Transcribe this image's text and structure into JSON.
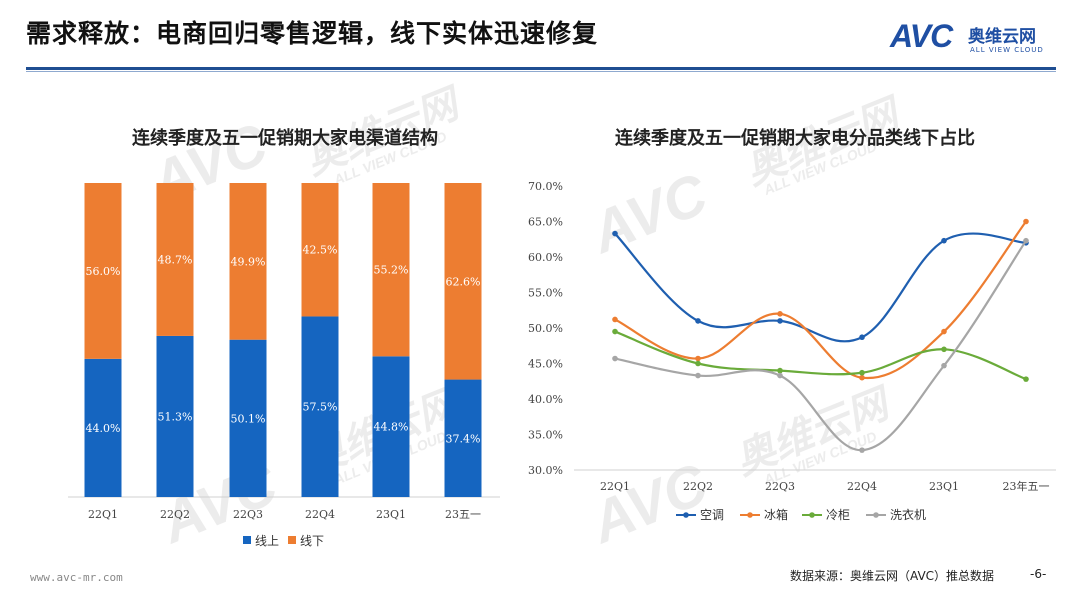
{
  "header": {
    "title": "需求释放：电商回归零售逻辑，线下实体迅速修复",
    "logo_text": "AVC",
    "logo_cn": "奥维云网",
    "logo_en": "ALL VIEW CLOUD"
  },
  "watermark": {
    "brand": "AVC",
    "cn": "奥维云网",
    "en": "ALL VIEW CLOUD"
  },
  "footer": {
    "url": "www.avc-mr.com",
    "source": "数据来源：奥维云网（AVC）推总数据",
    "page": "-6-"
  },
  "colors": {
    "online": "#1565c0",
    "offline": "#ed7d31",
    "aircon": "#1f5fb0",
    "fridge": "#ed7d31",
    "freezer": "#6aab3a",
    "washer": "#a6a6a6"
  },
  "chart_data": [
    {
      "type": "bar",
      "stacked": true,
      "title": "连续季度及五一促销期大家电渠道结构",
      "categories": [
        "22Q1",
        "22Q2",
        "22Q3",
        "22Q4",
        "23Q1",
        "23五一"
      ],
      "series": [
        {
          "name": "线上",
          "values": [
            44.0,
            51.3,
            50.1,
            57.5,
            44.8,
            37.4
          ],
          "labels": [
            "44.0%",
            "51.3%",
            "50.1%",
            "57.5%",
            "44.8%",
            "37.4%"
          ]
        },
        {
          "name": "线下",
          "values": [
            56.0,
            48.7,
            49.9,
            42.5,
            55.2,
            62.6
          ],
          "labels": [
            "56.0%",
            "48.7%",
            "49.9%",
            "42.5%",
            "55.2%",
            "62.6%"
          ]
        }
      ],
      "ylim": [
        0,
        100
      ],
      "legend": "bottom"
    },
    {
      "type": "line",
      "title": "连续季度及五一促销期大家电分品类线下占比",
      "categories": [
        "22Q1",
        "22Q2",
        "22Q3",
        "22Q4",
        "23Q1",
        "23年五一"
      ],
      "series": [
        {
          "name": "空调",
          "values": [
            63.3,
            51.0,
            51.0,
            48.7,
            62.3,
            62.0
          ]
        },
        {
          "name": "冰箱",
          "values": [
            51.2,
            45.7,
            52.0,
            43.0,
            49.5,
            65.0
          ]
        },
        {
          "name": "冷柜",
          "values": [
            49.5,
            45.0,
            44.0,
            43.7,
            47.0,
            42.8
          ]
        },
        {
          "name": "洗衣机",
          "values": [
            45.7,
            43.3,
            43.3,
            32.8,
            44.7,
            62.3
          ]
        }
      ],
      "yticks": [
        "30.0%",
        "35.0%",
        "40.0%",
        "45.0%",
        "50.0%",
        "55.0%",
        "60.0%",
        "65.0%",
        "70.0%"
      ],
      "ylim": [
        30,
        70
      ],
      "legend": "bottom"
    }
  ]
}
